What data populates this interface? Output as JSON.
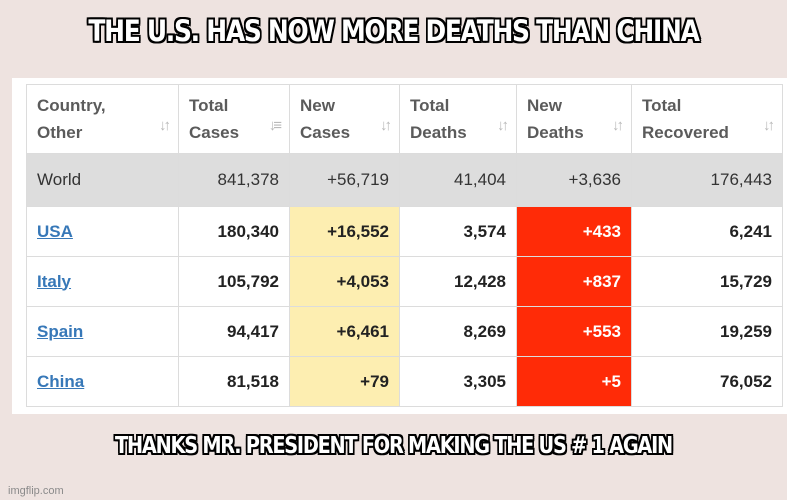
{
  "top_caption": "THE U.S. HAS NOW MORE DEATHS THAN CHINA",
  "bottom_caption": "THANKS MR. PRESIDENT FOR MAKING THE US  # 1 AGAIN",
  "watermark": "imgflip.com",
  "table": {
    "headers": [
      {
        "line1": "Country,",
        "line2": "Other",
        "sort_icon": "sort-both-icon"
      },
      {
        "line1": "Total",
        "line2": "Cases",
        "sort_icon": "sort-desc-icon"
      },
      {
        "line1": "New",
        "line2": "Cases",
        "sort_icon": "sort-both-icon"
      },
      {
        "line1": "Total",
        "line2": "Deaths",
        "sort_icon": "sort-both-icon"
      },
      {
        "line1": "New",
        "line2": "Deaths",
        "sort_icon": "sort-both-icon"
      },
      {
        "line1": "Total",
        "line2": "Recovered",
        "sort_icon": "sort-both-icon"
      }
    ],
    "rows": [
      {
        "country": "World",
        "total_cases": "841,378",
        "new_cases": "+56,719",
        "total_deaths": "41,404",
        "new_deaths": "+3,636",
        "total_recovered": "176,443"
      },
      {
        "country": "USA",
        "total_cases": "180,340",
        "new_cases": "+16,552",
        "total_deaths": "3,574",
        "new_deaths": "+433",
        "total_recovered": "6,241"
      },
      {
        "country": "Italy",
        "total_cases": "105,792",
        "new_cases": "+4,053",
        "total_deaths": "12,428",
        "new_deaths": "+837",
        "total_recovered": "15,729"
      },
      {
        "country": "Spain",
        "total_cases": "94,417",
        "new_cases": "+6,461",
        "total_deaths": "8,269",
        "new_deaths": "+553",
        "total_recovered": "19,259"
      },
      {
        "country": "China",
        "total_cases": "81,518",
        "new_cases": "+79",
        "total_deaths": "3,305",
        "new_deaths": "+5",
        "total_recovered": "76,052"
      }
    ]
  },
  "colors": {
    "new_cases_highlight": "#fdeeb1",
    "new_deaths_highlight": "#ff2b07",
    "link": "#3778b8"
  }
}
